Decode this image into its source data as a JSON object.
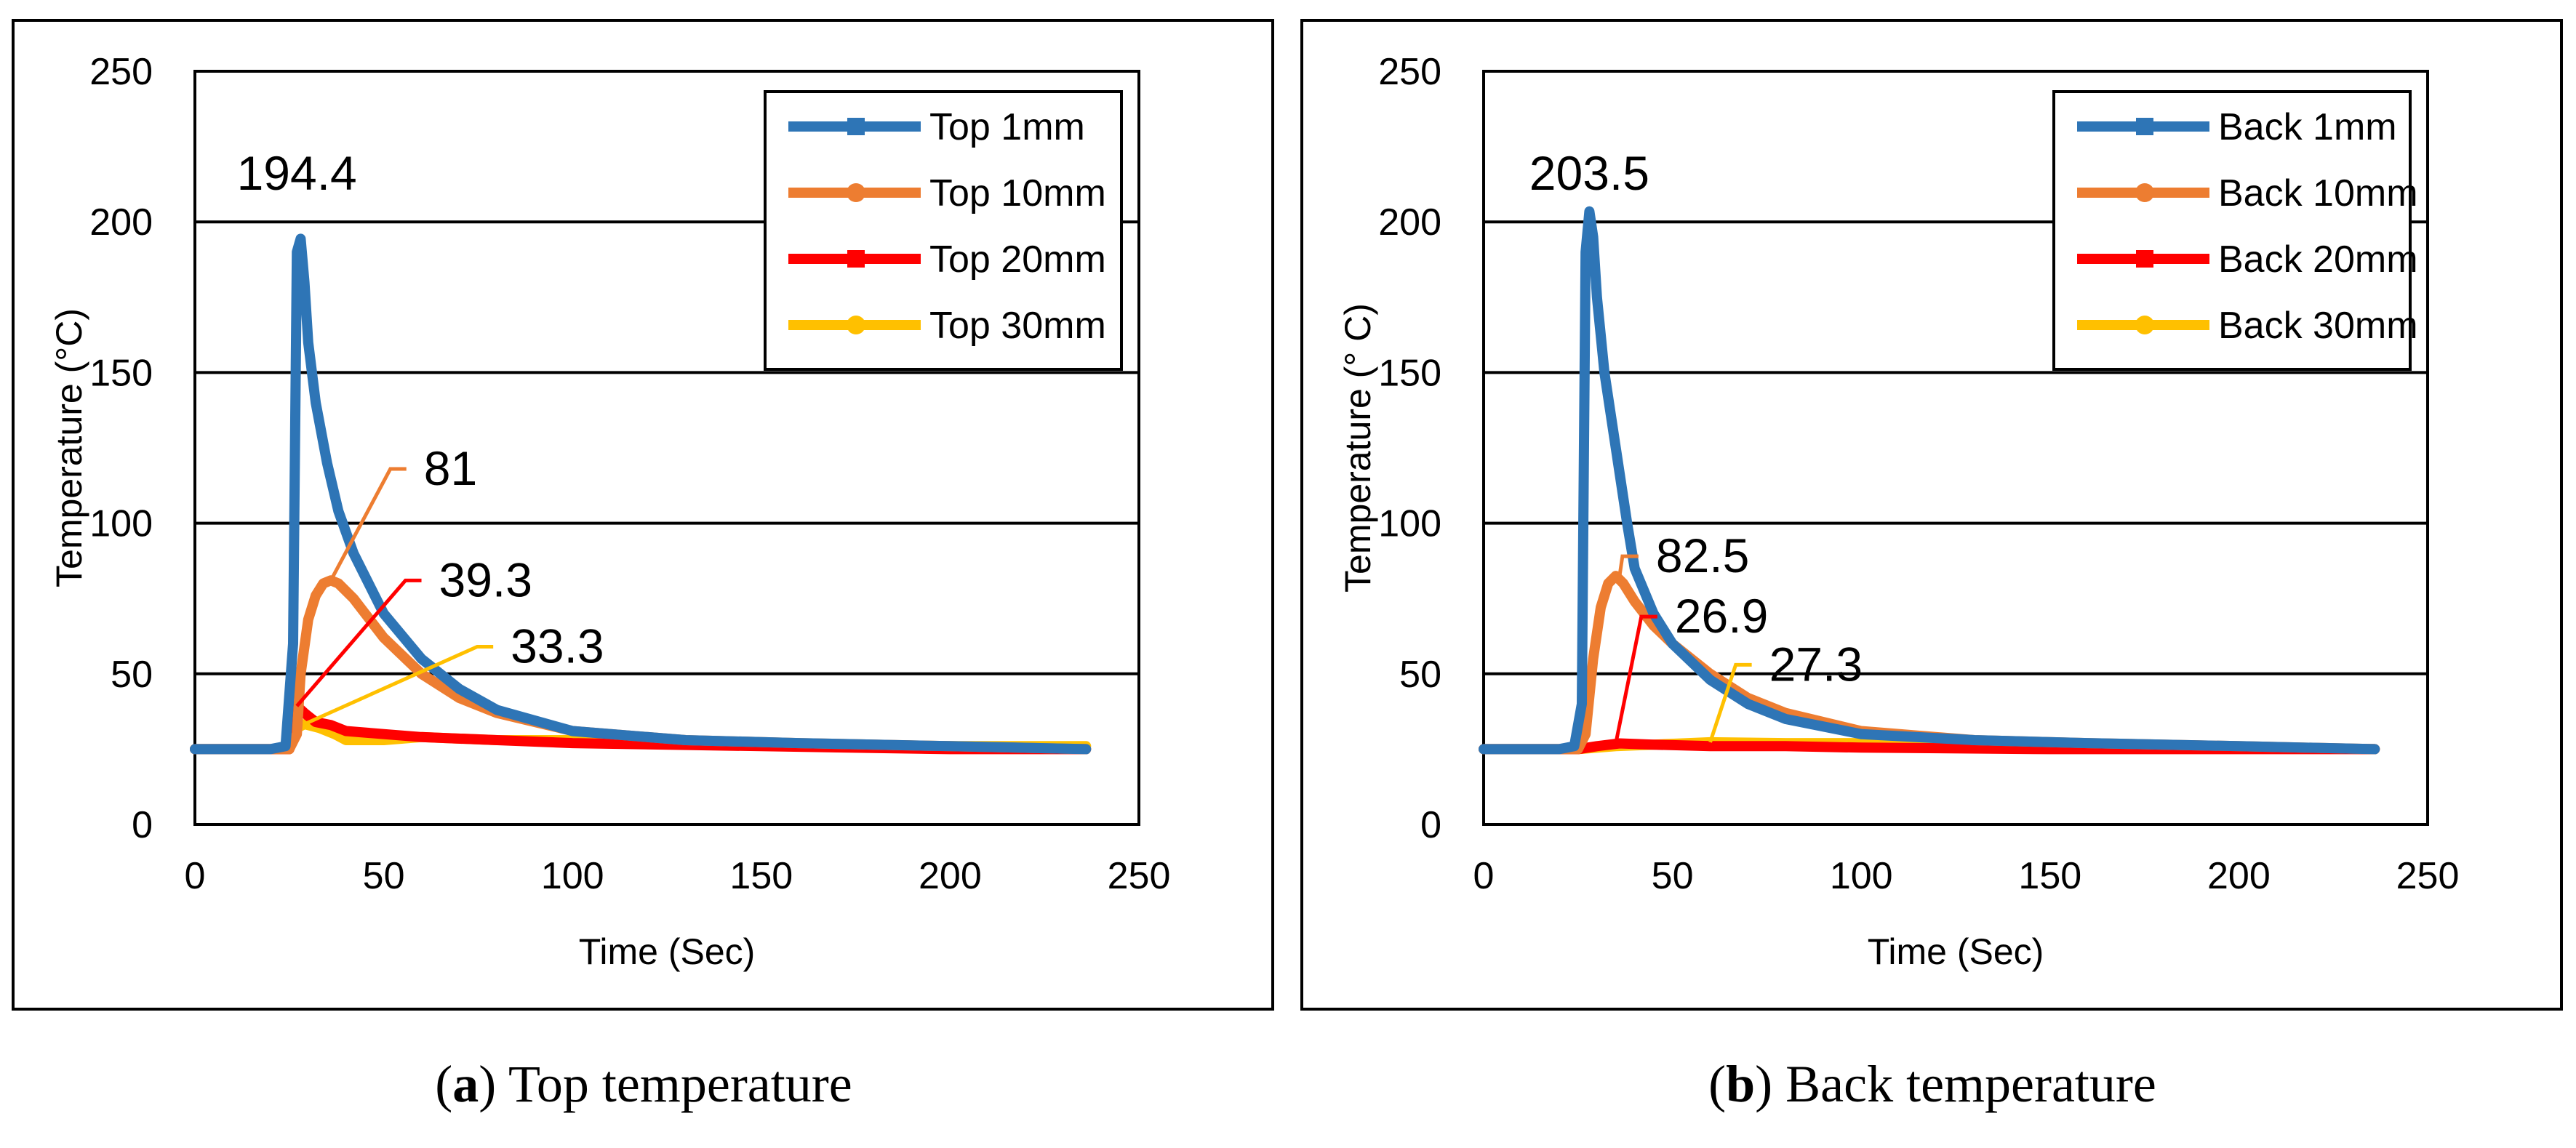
{
  "chart_data": [
    {
      "type": "line",
      "title": "",
      "xlabel": "Time (Sec)",
      "ylabel": "Temperature (°C)",
      "xlim": [
        0,
        250
      ],
      "ylim": [
        0,
        250
      ],
      "xticks": [
        0,
        50,
        100,
        150,
        200,
        250
      ],
      "yticks": [
        0,
        50,
        100,
        150,
        200,
        250
      ],
      "grid": "horizontal",
      "legend_position": "top-right",
      "caption_letter": "a",
      "caption_text": ") Top temperature",
      "series": [
        {
          "name": "Top 1mm",
          "color": "#2E75B6",
          "marker": "square",
          "x": [
            0,
            20,
            24,
            26,
            27,
            28,
            29,
            30,
            32,
            35,
            38,
            42,
            50,
            60,
            70,
            80,
            100,
            130,
            160,
            200,
            236
          ],
          "y": [
            25,
            25,
            26,
            60,
            190,
            194.4,
            180,
            160,
            140,
            120,
            104,
            90,
            70,
            55,
            45,
            38,
            31,
            28,
            27,
            26,
            25
          ]
        },
        {
          "name": "Top 10mm",
          "color": "#ED7D31",
          "marker": "circle",
          "x": [
            0,
            25,
            27,
            28,
            30,
            32,
            34,
            36,
            38,
            42,
            50,
            60,
            70,
            80,
            100,
            130,
            160,
            200,
            236
          ],
          "y": [
            25,
            25,
            30,
            50,
            68,
            76,
            80,
            81,
            80,
            75,
            62,
            50,
            42,
            37,
            31,
            28,
            27,
            26,
            25
          ]
        },
        {
          "name": "Top 20mm",
          "color": "#FF0000",
          "marker": "square",
          "x": [
            0,
            25,
            26,
            27,
            29,
            32,
            36,
            40,
            50,
            60,
            80,
            100,
            150,
            200,
            236
          ],
          "y": [
            25,
            25,
            36,
            39.3,
            37,
            34,
            33,
            31,
            30,
            29,
            28,
            27,
            26,
            25,
            25
          ]
        },
        {
          "name": "Top 30mm",
          "color": "#FFC000",
          "marker": "circle",
          "x": [
            0,
            25,
            27,
            29,
            33,
            37,
            40,
            43,
            50,
            60,
            80,
            100,
            150,
            200,
            236
          ],
          "y": [
            25,
            25,
            32,
            33.3,
            32,
            30,
            28,
            28,
            28,
            29,
            28,
            28,
            27,
            26,
            26
          ]
        }
      ],
      "annotations": [
        {
          "text": "194.4",
          "x": 27,
          "y": 194.4,
          "color": "#000000",
          "leader": false,
          "label_x": 27,
          "label_y": 216
        },
        {
          "text": "81",
          "x": 36,
          "y": 81,
          "color": "#ED7D31",
          "leader": true,
          "label_x": 56,
          "label_y": 118
        },
        {
          "text": "39.3",
          "x": 27,
          "y": 39.3,
          "color": "#FF0000",
          "leader": true,
          "label_x": 60,
          "label_y": 81
        },
        {
          "text": "33.3",
          "x": 29,
          "y": 33.3,
          "color": "#FFC000",
          "leader": true,
          "label_x": 79,
          "label_y": 59
        }
      ]
    },
    {
      "type": "line",
      "title": "",
      "xlabel": "Time (Sec)",
      "ylabel": "Temperature (°  C)",
      "xlim": [
        0,
        250
      ],
      "ylim": [
        0,
        250
      ],
      "xticks": [
        0,
        50,
        100,
        150,
        200,
        250
      ],
      "yticks": [
        0,
        50,
        100,
        150,
        200,
        250
      ],
      "grid": "horizontal",
      "legend_position": "top-right",
      "caption_letter": "b",
      "caption_text": ") Back temperature",
      "series": [
        {
          "name": "Back 1mm",
          "color": "#2E75B6",
          "marker": "square",
          "x": [
            0,
            20,
            24,
            26,
            27,
            28,
            29,
            30,
            32,
            35,
            38,
            40,
            45,
            50,
            60,
            70,
            80,
            100,
            130,
            160,
            200,
            236
          ],
          "y": [
            25,
            25,
            26,
            40,
            190,
            203.5,
            195,
            175,
            150,
            125,
            100,
            85,
            70,
            60,
            48,
            40,
            35,
            30,
            28,
            27,
            26,
            25
          ]
        },
        {
          "name": "Back 10mm",
          "color": "#ED7D31",
          "marker": "circle",
          "x": [
            0,
            25,
            27,
            29,
            31,
            33,
            35,
            37,
            40,
            45,
            50,
            60,
            70,
            80,
            100,
            130,
            160,
            200,
            236
          ],
          "y": [
            25,
            25,
            30,
            55,
            72,
            80,
            82.5,
            80,
            74,
            66,
            60,
            50,
            42,
            37,
            31,
            28,
            27,
            26,
            25
          ]
        },
        {
          "name": "Back 20mm",
          "color": "#FF0000",
          "marker": "square",
          "x": [
            0,
            25,
            30,
            36,
            45,
            60,
            80,
            100,
            150,
            200,
            236
          ],
          "y": [
            25,
            25,
            26,
            26.9,
            26.5,
            26,
            26,
            25.5,
            25,
            25,
            25
          ]
        },
        {
          "name": "Back 30mm",
          "color": "#FFC000",
          "marker": "circle",
          "x": [
            0,
            25,
            35,
            45,
            60,
            80,
            100,
            150,
            200,
            236
          ],
          "y": [
            25,
            25,
            26,
            26.5,
            27.3,
            27,
            27,
            26,
            25.5,
            25
          ]
        }
      ],
      "annotations": [
        {
          "text": "203.5",
          "x": 28,
          "y": 203.5,
          "color": "#000000",
          "leader": false,
          "label_x": 28,
          "label_y": 216
        },
        {
          "text": "82.5",
          "x": 36,
          "y": 82.5,
          "color": "#ED7D31",
          "leader": true,
          "label_x": 41,
          "label_y": 89
        },
        {
          "text": "26.9",
          "x": 35,
          "y": 26.9,
          "color": "#FF0000",
          "leader": true,
          "label_x": 46,
          "label_y": 69
        },
        {
          "text": "27.3",
          "x": 60,
          "y": 27.3,
          "color": "#FFC000",
          "leader": true,
          "label_x": 71,
          "label_y": 53
        }
      ]
    }
  ]
}
